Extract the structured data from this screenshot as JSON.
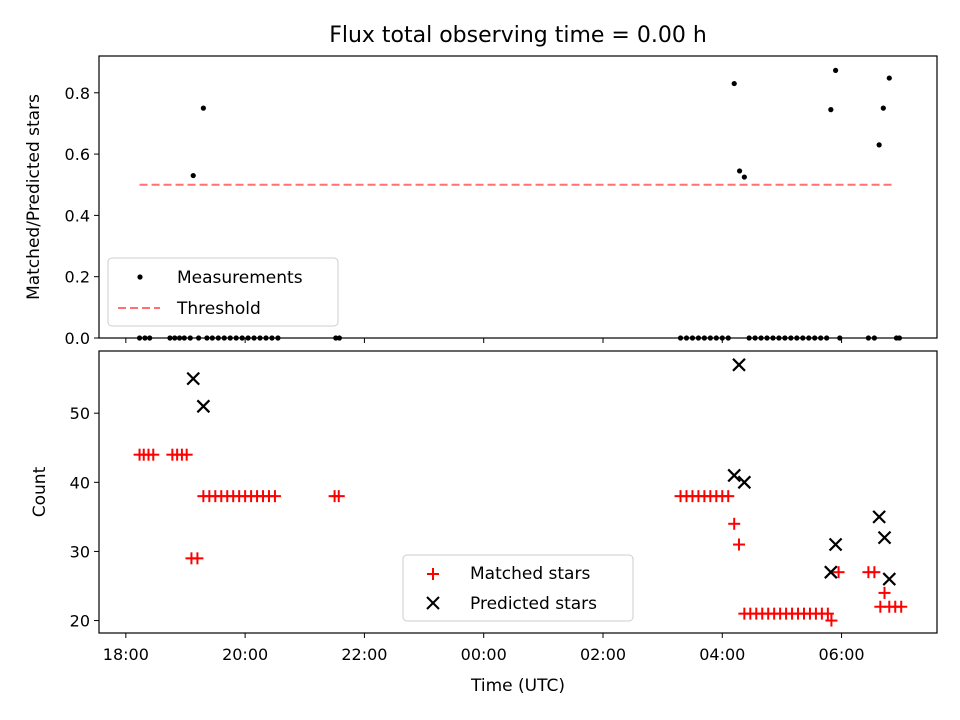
{
  "chart_data": [
    {
      "type": "scatter",
      "title": "Flux total observing time = 0.00 h",
      "ylabel": "Matched/Predicted stars",
      "xlabel": "",
      "xlim_hours": [
        -6.45,
        7.6
      ],
      "ylim": [
        0,
        0.92
      ],
      "y_ticks": [
        "0.0",
        "0.2",
        "0.4",
        "0.6",
        "0.8"
      ],
      "y_tick_values": [
        0,
        0.2,
        0.4,
        0.6,
        0.8
      ],
      "x_tick_values_hours": [
        -6,
        -4,
        -2,
        0,
        2,
        4,
        6
      ],
      "legend": [
        "Measurements",
        "Threshold"
      ],
      "legend_position": "lower-left",
      "threshold": {
        "value": 0.5,
        "x_range_hours": [
          -5.77,
          6.88
        ],
        "color": "#ff7070"
      },
      "series": [
        {
          "name": "Measurements",
          "color": "#000000",
          "points": [
            [
              -5.77,
              0
            ],
            [
              -5.68,
              0
            ],
            [
              -5.6,
              0
            ],
            [
              -5.26,
              0
            ],
            [
              -5.18,
              0
            ],
            [
              -5.1,
              0
            ],
            [
              -5.02,
              0
            ],
            [
              -4.92,
              0
            ],
            [
              -4.87,
              0.53
            ],
            [
              -4.7,
              0.75
            ],
            [
              -4.78,
              0
            ],
            [
              -4.64,
              0
            ],
            [
              -4.55,
              0
            ],
            [
              -4.45,
              0
            ],
            [
              -4.35,
              0
            ],
            [
              -4.25,
              0
            ],
            [
              -4.15,
              0
            ],
            [
              -4.05,
              0
            ],
            [
              -3.95,
              0
            ],
            [
              -3.85,
              0
            ],
            [
              -3.75,
              0
            ],
            [
              -3.65,
              0
            ],
            [
              -3.55,
              0
            ],
            [
              -3.45,
              0
            ],
            [
              -2.48,
              0
            ],
            [
              -2.42,
              0
            ],
            [
              3.3,
              0
            ],
            [
              3.4,
              0
            ],
            [
              3.5,
              0
            ],
            [
              3.6,
              0
            ],
            [
              3.7,
              0
            ],
            [
              3.8,
              0
            ],
            [
              3.9,
              0
            ],
            [
              4.0,
              0
            ],
            [
              4.1,
              0
            ],
            [
              4.2,
              0.83
            ],
            [
              4.29,
              0.545
            ],
            [
              4.37,
              0.525
            ],
            [
              4.45,
              0
            ],
            [
              4.55,
              0
            ],
            [
              4.65,
              0
            ],
            [
              4.75,
              0
            ],
            [
              4.85,
              0
            ],
            [
              4.95,
              0
            ],
            [
              5.05,
              0
            ],
            [
              5.15,
              0
            ],
            [
              5.25,
              0
            ],
            [
              5.35,
              0
            ],
            [
              5.45,
              0
            ],
            [
              5.55,
              0
            ],
            [
              5.65,
              0
            ],
            [
              5.75,
              0
            ],
            [
              5.82,
              0.745
            ],
            [
              5.9,
              0.873
            ],
            [
              5.97,
              0
            ],
            [
              6.45,
              0
            ],
            [
              6.55,
              0
            ],
            [
              6.63,
              0.63
            ],
            [
              6.7,
              0.75
            ],
            [
              6.8,
              0.848
            ],
            [
              6.92,
              0
            ],
            [
              6.97,
              0
            ]
          ]
        }
      ]
    },
    {
      "type": "scatter",
      "title": "",
      "ylabel": "Count",
      "xlabel": "Time (UTC)",
      "xlim_hours": [
        -6.45,
        7.6
      ],
      "ylim": [
        18.2,
        59
      ],
      "y_ticks": [
        "20",
        "30",
        "40",
        "50"
      ],
      "y_tick_values": [
        20,
        30,
        40,
        50
      ],
      "x_ticks": [
        "18:00",
        "20:00",
        "22:00",
        "00:00",
        "02:00",
        "04:00",
        "06:00"
      ],
      "x_tick_values_hours": [
        -6,
        -4,
        -2,
        0,
        2,
        4,
        6
      ],
      "legend": [
        "Matched stars",
        "Predicted stars"
      ],
      "legend_position": "lower-center",
      "series": [
        {
          "name": "Matched stars",
          "marker": "plus",
          "color": "#ff0000",
          "points": [
            [
              -5.77,
              44
            ],
            [
              -5.7,
              44
            ],
            [
              -5.62,
              44
            ],
            [
              -5.54,
              44
            ],
            [
              -5.22,
              44
            ],
            [
              -5.14,
              44
            ],
            [
              -5.06,
              44
            ],
            [
              -4.98,
              44
            ],
            [
              -4.9,
              29
            ],
            [
              -4.8,
              29
            ],
            [
              -4.7,
              38
            ],
            [
              -4.6,
              38
            ],
            [
              -4.5,
              38
            ],
            [
              -4.4,
              38
            ],
            [
              -4.3,
              38
            ],
            [
              -4.2,
              38
            ],
            [
              -4.1,
              38
            ],
            [
              -4.0,
              38
            ],
            [
              -3.9,
              38
            ],
            [
              -3.8,
              38
            ],
            [
              -3.7,
              38
            ],
            [
              -3.6,
              38
            ],
            [
              -3.5,
              38
            ],
            [
              -2.5,
              38
            ],
            [
              -2.43,
              38
            ],
            [
              3.3,
              38
            ],
            [
              3.4,
              38
            ],
            [
              3.5,
              38
            ],
            [
              3.6,
              38
            ],
            [
              3.7,
              38
            ],
            [
              3.8,
              38
            ],
            [
              3.9,
              38
            ],
            [
              4.0,
              38
            ],
            [
              4.1,
              38
            ],
            [
              4.2,
              34
            ],
            [
              4.28,
              31
            ],
            [
              4.37,
              21
            ],
            [
              4.47,
              21
            ],
            [
              4.57,
              21
            ],
            [
              4.67,
              21
            ],
            [
              4.77,
              21
            ],
            [
              4.87,
              21
            ],
            [
              4.97,
              21
            ],
            [
              5.07,
              21
            ],
            [
              5.17,
              21
            ],
            [
              5.27,
              21
            ],
            [
              5.37,
              21
            ],
            [
              5.47,
              21
            ],
            [
              5.57,
              21
            ],
            [
              5.67,
              21
            ],
            [
              5.77,
              21
            ],
            [
              5.83,
              20
            ],
            [
              5.95,
              27
            ],
            [
              6.45,
              27
            ],
            [
              6.55,
              27
            ],
            [
              6.65,
              22
            ],
            [
              6.72,
              24
            ],
            [
              6.8,
              22
            ],
            [
              6.9,
              22
            ],
            [
              7.0,
              22
            ]
          ]
        },
        {
          "name": "Predicted stars",
          "marker": "x",
          "color": "#000000",
          "points": [
            [
              -4.87,
              55
            ],
            [
              -4.7,
              51
            ],
            [
              4.2,
              41
            ],
            [
              4.28,
              57
            ],
            [
              4.37,
              40
            ],
            [
              5.82,
              27
            ],
            [
              5.9,
              31
            ],
            [
              6.63,
              35
            ],
            [
              6.72,
              32
            ],
            [
              6.8,
              26
            ]
          ]
        }
      ]
    }
  ]
}
